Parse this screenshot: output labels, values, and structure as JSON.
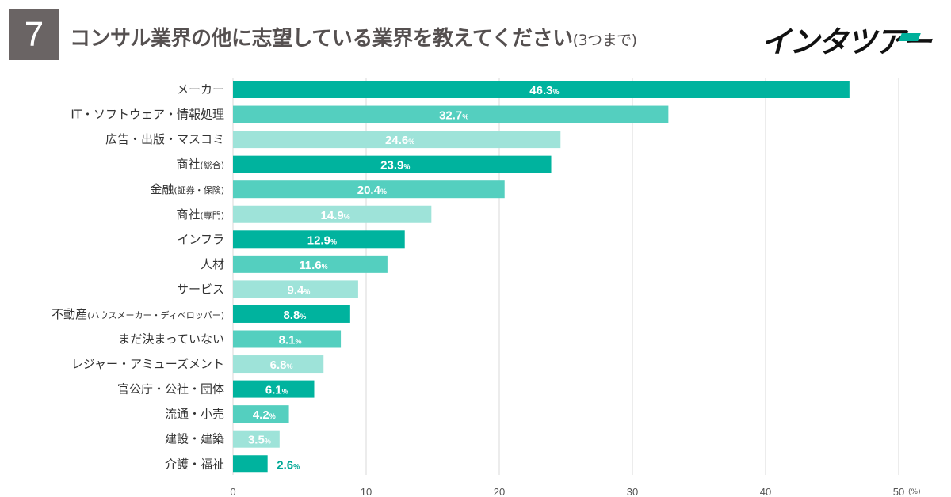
{
  "question_number": "7",
  "title": "コンサル業界の他に志望している業界を教えてください",
  "title_suffix": "(3つまで)",
  "logo_text": "インタツアー",
  "colors": {
    "dark": "#00b39e",
    "medium": "#54cfbf",
    "light": "#9ee3d9",
    "label_outside": "#00a896",
    "grid": "#d9d9d9",
    "qbox": "#6a6464"
  },
  "chart_data": {
    "type": "bar",
    "orientation": "horizontal",
    "unit": "(%)",
    "percent_symbol": "%",
    "xlim": [
      0,
      50
    ],
    "ticks": [
      0,
      10,
      20,
      30,
      40,
      50
    ],
    "grid": true,
    "categories": [
      {
        "label": "メーカー",
        "sub": "",
        "value": 46.3,
        "shade": "dark"
      },
      {
        "label": "IT・ソフトウェア・情報処理",
        "sub": "",
        "value": 32.7,
        "shade": "medium"
      },
      {
        "label": "広告・出版・マスコミ",
        "sub": "",
        "value": 24.6,
        "shade": "light"
      },
      {
        "label": "商社",
        "sub": "(総合)",
        "value": 23.9,
        "shade": "dark"
      },
      {
        "label": "金融",
        "sub": "(証券・保険)",
        "value": 20.4,
        "shade": "medium"
      },
      {
        "label": "商社",
        "sub": "(専門)",
        "value": 14.9,
        "shade": "light"
      },
      {
        "label": "インフラ",
        "sub": "",
        "value": 12.9,
        "shade": "dark"
      },
      {
        "label": "人材",
        "sub": "",
        "value": 11.6,
        "shade": "medium"
      },
      {
        "label": "サービス",
        "sub": "",
        "value": 9.4,
        "shade": "light"
      },
      {
        "label": "不動産",
        "sub": "(ハウスメーカー・ディベロッパー)",
        "value": 8.8,
        "shade": "dark"
      },
      {
        "label": "まだ決まっていない",
        "sub": "",
        "value": 8.1,
        "shade": "medium"
      },
      {
        "label": "レジャー・アミューズメント",
        "sub": "",
        "value": 6.8,
        "shade": "light"
      },
      {
        "label": "官公庁・公社・団体",
        "sub": "",
        "value": 6.1,
        "shade": "dark"
      },
      {
        "label": "流通・小売",
        "sub": "",
        "value": 4.2,
        "shade": "medium"
      },
      {
        "label": "建設・建築",
        "sub": "",
        "value": 3.5,
        "shade": "light"
      },
      {
        "label": "介護・福祉",
        "sub": "",
        "value": 2.6,
        "shade": "dark"
      }
    ]
  }
}
